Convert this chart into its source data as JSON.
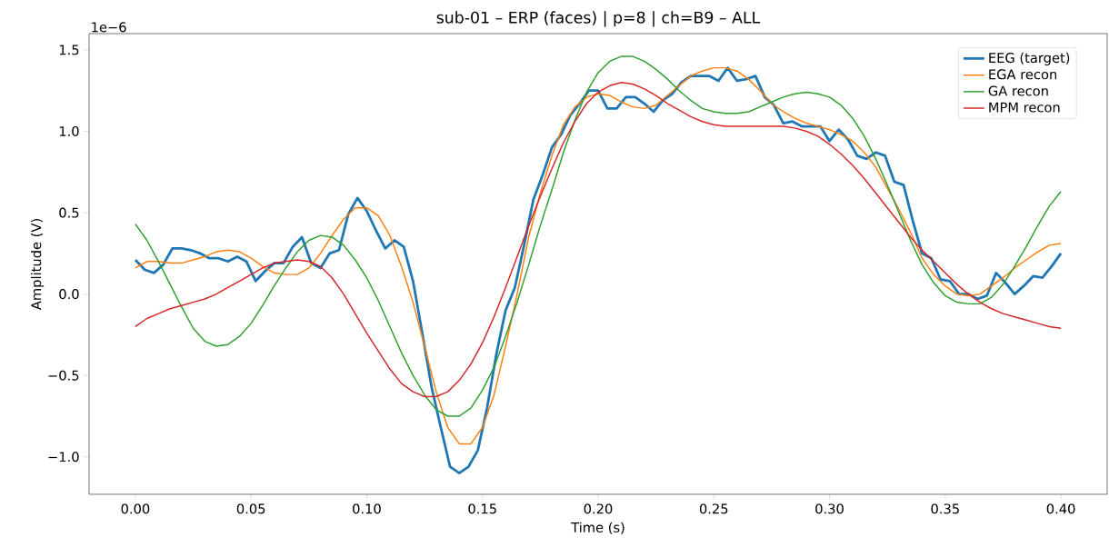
{
  "chart_data": {
    "type": "line",
    "title": "sub-01 – ERP (faces) | p=8 | ch=B9 – ALL",
    "xlabel": "Time (s)",
    "ylabel": "Amplitude (V)",
    "annotations": [
      "1e−6"
    ],
    "xlim": [
      -0.02,
      0.42
    ],
    "ylim": [
      -1.23,
      1.6
    ],
    "xticks": [
      {
        "value": 0,
        "label": "0.00"
      },
      {
        "value": 0.05,
        "label": "0.05"
      },
      {
        "value": 0.1,
        "label": "0.10"
      },
      {
        "value": 0.15,
        "label": "0.15"
      },
      {
        "value": 0.2,
        "label": "0.20"
      },
      {
        "value": 0.25,
        "label": "0.25"
      },
      {
        "value": 0.3,
        "label": "0.30"
      },
      {
        "value": 0.35,
        "label": "0.35"
      },
      {
        "value": 0.4,
        "label": "0.40"
      }
    ],
    "yticks": [
      {
        "value": -1,
        "label": "−1.0"
      },
      {
        "value": -0.5,
        "label": "−0.5"
      },
      {
        "value": 0,
        "label": "0.0"
      },
      {
        "value": 0.5,
        "label": "0.5"
      },
      {
        "value": 1,
        "label": "1.0"
      },
      {
        "value": 1.5,
        "label": "1.5"
      }
    ],
    "legend": "top right",
    "grid": false,
    "series": [
      {
        "name": "EEG (target)",
        "color": "#1f77b4",
        "x": [
          0,
          0.004,
          0.008,
          0.012,
          0.016,
          0.02,
          0.024,
          0.028,
          0.032,
          0.036,
          0.04,
          0.044,
          0.048,
          0.052,
          0.056,
          0.06,
          0.064,
          0.068,
          0.072,
          0.076,
          0.08,
          0.084,
          0.088,
          0.092,
          0.096,
          0.1,
          0.104,
          0.108,
          0.112,
          0.116,
          0.12,
          0.124,
          0.128,
          0.132,
          0.136,
          0.14,
          0.144,
          0.148,
          0.152,
          0.156,
          0.16,
          0.164,
          0.168,
          0.172,
          0.176,
          0.18,
          0.184,
          0.188,
          0.192,
          0.196,
          0.2,
          0.204,
          0.208,
          0.212,
          0.216,
          0.22,
          0.224,
          0.228,
          0.232,
          0.236,
          0.24,
          0.244,
          0.248,
          0.252,
          0.256,
          0.26,
          0.264,
          0.268,
          0.272,
          0.276,
          0.28,
          0.284,
          0.288,
          0.292,
          0.296,
          0.3,
          0.304,
          0.308,
          0.312,
          0.316,
          0.32,
          0.324,
          0.328,
          0.332,
          0.336,
          0.34,
          0.344,
          0.348,
          0.352,
          0.356,
          0.36,
          0.364,
          0.368,
          0.372,
          0.376,
          0.38,
          0.384,
          0.388,
          0.392,
          0.396,
          0.4
        ],
        "values": [
          0.21,
          0.15,
          0.13,
          0.18,
          0.28,
          0.28,
          0.27,
          0.25,
          0.22,
          0.22,
          0.2,
          0.23,
          0.2,
          0.08,
          0.14,
          0.19,
          0.19,
          0.29,
          0.35,
          0.19,
          0.16,
          0.25,
          0.27,
          0.49,
          0.59,
          0.51,
          0.39,
          0.28,
          0.33,
          0.29,
          0.08,
          -0.24,
          -0.57,
          -0.82,
          -1.06,
          -1.1,
          -1.06,
          -0.96,
          -0.7,
          -0.37,
          -0.1,
          0.04,
          0.3,
          0.58,
          0.73,
          0.9,
          0.98,
          1.1,
          1.17,
          1.25,
          1.25,
          1.14,
          1.14,
          1.21,
          1.21,
          1.17,
          1.12,
          1.19,
          1.23,
          1.3,
          1.34,
          1.34,
          1.34,
          1.31,
          1.39,
          1.31,
          1.32,
          1.34,
          1.21,
          1.16,
          1.05,
          1.06,
          1.03,
          1.03,
          1.03,
          0.94,
          1.01,
          0.95,
          0.85,
          0.83,
          0.87,
          0.85,
          0.69,
          0.67,
          0.45,
          0.25,
          0.22,
          0.09,
          0.08,
          0.0,
          0.0,
          -0.03,
          -0.01,
          0.13,
          0.07,
          0.0,
          0.05,
          0.11,
          0.1,
          0.17,
          0.25
        ]
      },
      {
        "name": "EGA recon",
        "color": "#ff7f0e",
        "x": [
          0,
          0.005,
          0.01,
          0.015,
          0.02,
          0.025,
          0.03,
          0.035,
          0.04,
          0.045,
          0.05,
          0.055,
          0.06,
          0.065,
          0.07,
          0.075,
          0.08,
          0.085,
          0.09,
          0.095,
          0.1,
          0.105,
          0.11,
          0.115,
          0.12,
          0.125,
          0.13,
          0.135,
          0.14,
          0.145,
          0.15,
          0.155,
          0.16,
          0.165,
          0.17,
          0.175,
          0.18,
          0.185,
          0.19,
          0.195,
          0.2,
          0.205,
          0.21,
          0.215,
          0.22,
          0.225,
          0.23,
          0.235,
          0.24,
          0.245,
          0.25,
          0.255,
          0.26,
          0.265,
          0.27,
          0.275,
          0.28,
          0.285,
          0.29,
          0.295,
          0.3,
          0.305,
          0.31,
          0.315,
          0.32,
          0.325,
          0.33,
          0.335,
          0.34,
          0.345,
          0.35,
          0.355,
          0.36,
          0.365,
          0.37,
          0.375,
          0.38,
          0.385,
          0.39,
          0.395,
          0.4
        ],
        "values": [
          0.16,
          0.2,
          0.2,
          0.19,
          0.19,
          0.21,
          0.23,
          0.26,
          0.27,
          0.26,
          0.22,
          0.17,
          0.13,
          0.12,
          0.12,
          0.16,
          0.25,
          0.36,
          0.46,
          0.53,
          0.53,
          0.48,
          0.36,
          0.17,
          -0.05,
          -0.32,
          -0.6,
          -0.82,
          -0.92,
          -0.92,
          -0.82,
          -0.62,
          -0.32,
          0.0,
          0.35,
          0.62,
          0.85,
          1.04,
          1.15,
          1.21,
          1.23,
          1.22,
          1.18,
          1.15,
          1.14,
          1.16,
          1.22,
          1.28,
          1.34,
          1.37,
          1.39,
          1.39,
          1.37,
          1.32,
          1.25,
          1.17,
          1.12,
          1.08,
          1.05,
          1.03,
          1.01,
          0.98,
          0.94,
          0.87,
          0.78,
          0.65,
          0.52,
          0.38,
          0.22,
          0.12,
          0.05,
          0.0,
          -0.01,
          0.0,
          0.05,
          0.1,
          0.16,
          0.21,
          0.26,
          0.3,
          0.31
        ]
      },
      {
        "name": "GA recon",
        "color": "#2ca02c",
        "x": [
          0,
          0.005,
          0.01,
          0.015,
          0.02,
          0.025,
          0.03,
          0.035,
          0.04,
          0.045,
          0.05,
          0.055,
          0.06,
          0.065,
          0.07,
          0.075,
          0.08,
          0.085,
          0.09,
          0.095,
          0.1,
          0.105,
          0.11,
          0.115,
          0.12,
          0.125,
          0.13,
          0.135,
          0.14,
          0.145,
          0.15,
          0.155,
          0.16,
          0.165,
          0.17,
          0.175,
          0.18,
          0.185,
          0.19,
          0.195,
          0.2,
          0.205,
          0.21,
          0.215,
          0.22,
          0.225,
          0.23,
          0.235,
          0.24,
          0.245,
          0.25,
          0.255,
          0.26,
          0.265,
          0.27,
          0.275,
          0.28,
          0.285,
          0.29,
          0.295,
          0.3,
          0.305,
          0.31,
          0.315,
          0.32,
          0.325,
          0.33,
          0.335,
          0.34,
          0.345,
          0.35,
          0.355,
          0.36,
          0.365,
          0.37,
          0.375,
          0.38,
          0.385,
          0.39,
          0.395,
          0.4
        ],
        "values": [
          0.43,
          0.33,
          0.2,
          0.06,
          -0.08,
          -0.21,
          -0.29,
          -0.32,
          -0.31,
          -0.26,
          -0.18,
          -0.07,
          0.05,
          0.16,
          0.26,
          0.33,
          0.36,
          0.35,
          0.3,
          0.21,
          0.1,
          -0.04,
          -0.2,
          -0.36,
          -0.5,
          -0.62,
          -0.71,
          -0.75,
          -0.75,
          -0.7,
          -0.59,
          -0.45,
          -0.26,
          -0.05,
          0.18,
          0.42,
          0.64,
          0.87,
          1.07,
          1.24,
          1.36,
          1.43,
          1.46,
          1.46,
          1.43,
          1.38,
          1.32,
          1.25,
          1.19,
          1.14,
          1.12,
          1.11,
          1.11,
          1.12,
          1.15,
          1.18,
          1.21,
          1.23,
          1.24,
          1.23,
          1.21,
          1.16,
          1.08,
          0.97,
          0.83,
          0.67,
          0.5,
          0.33,
          0.18,
          0.07,
          -0.01,
          -0.05,
          -0.06,
          -0.06,
          -0.02,
          0.06,
          0.17,
          0.29,
          0.42,
          0.54,
          0.63
        ]
      },
      {
        "name": "MPM recon",
        "color": "#d62728",
        "x": [
          0,
          0.005,
          0.01,
          0.015,
          0.02,
          0.025,
          0.03,
          0.035,
          0.04,
          0.045,
          0.05,
          0.055,
          0.06,
          0.065,
          0.07,
          0.075,
          0.08,
          0.085,
          0.09,
          0.095,
          0.1,
          0.105,
          0.11,
          0.115,
          0.12,
          0.125,
          0.13,
          0.135,
          0.14,
          0.145,
          0.15,
          0.155,
          0.16,
          0.165,
          0.17,
          0.175,
          0.18,
          0.185,
          0.19,
          0.195,
          0.2,
          0.205,
          0.21,
          0.215,
          0.22,
          0.225,
          0.23,
          0.235,
          0.24,
          0.245,
          0.25,
          0.255,
          0.26,
          0.265,
          0.27,
          0.275,
          0.28,
          0.285,
          0.29,
          0.295,
          0.3,
          0.305,
          0.31,
          0.315,
          0.32,
          0.325,
          0.33,
          0.335,
          0.34,
          0.345,
          0.35,
          0.355,
          0.36,
          0.365,
          0.37,
          0.375,
          0.38,
          0.385,
          0.39,
          0.395,
          0.4
        ],
        "values": [
          -0.2,
          -0.15,
          -0.12,
          -0.09,
          -0.07,
          -0.05,
          -0.03,
          0.0,
          0.04,
          0.08,
          0.12,
          0.16,
          0.19,
          0.2,
          0.21,
          0.2,
          0.17,
          0.1,
          0.0,
          -0.12,
          -0.24,
          -0.35,
          -0.46,
          -0.55,
          -0.6,
          -0.63,
          -0.63,
          -0.6,
          -0.53,
          -0.43,
          -0.3,
          -0.14,
          0.04,
          0.23,
          0.42,
          0.6,
          0.77,
          0.93,
          1.06,
          1.17,
          1.24,
          1.28,
          1.3,
          1.29,
          1.26,
          1.22,
          1.17,
          1.13,
          1.09,
          1.06,
          1.04,
          1.03,
          1.03,
          1.03,
          1.03,
          1.03,
          1.03,
          1.02,
          1.0,
          0.97,
          0.92,
          0.86,
          0.79,
          0.71,
          0.62,
          0.53,
          0.44,
          0.35,
          0.27,
          0.2,
          0.13,
          0.06,
          0.0,
          -0.05,
          -0.09,
          -0.12,
          -0.14,
          -0.16,
          -0.18,
          -0.2,
          -0.21
        ]
      }
    ]
  }
}
